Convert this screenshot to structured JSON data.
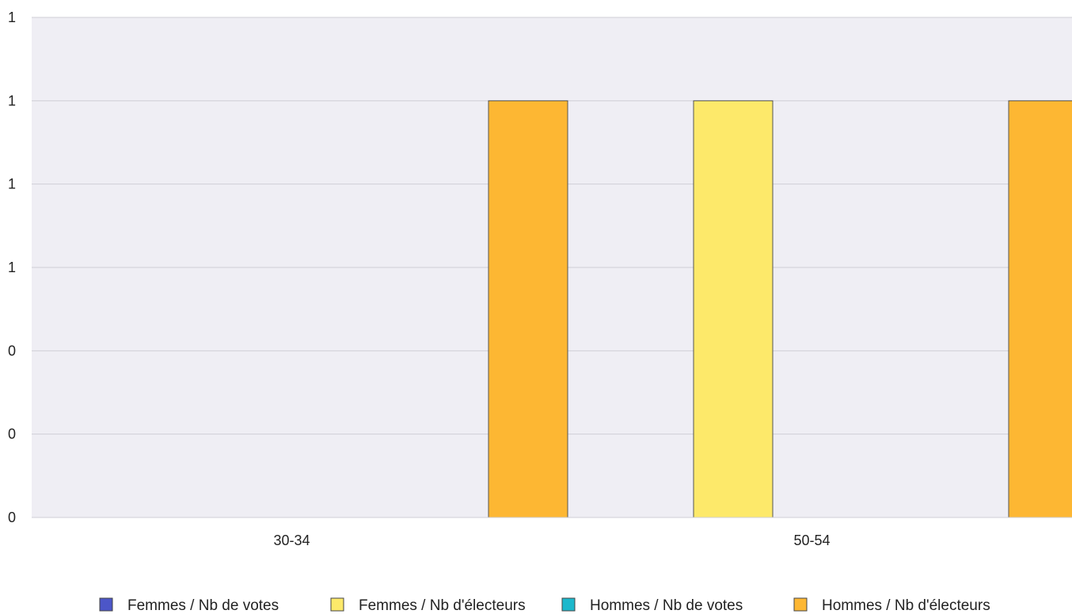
{
  "chart_data": {
    "type": "bar",
    "categories": [
      "30-34",
      "50-54"
    ],
    "series": [
      {
        "name": "Femmes / Nb de votes",
        "color": "#4c56c8",
        "values": [
          0,
          0
        ]
      },
      {
        "name": "Femmes / Nb d'électeurs",
        "color": "#fde96a",
        "values": [
          0,
          1
        ]
      },
      {
        "name": "Hommes / Nb de votes",
        "color": "#1cb8cc",
        "values": [
          0,
          0
        ]
      },
      {
        "name": "Hommes / Nb d'électeurs",
        "color": "#fdb733",
        "values": [
          1,
          1
        ]
      }
    ],
    "y_tick_labels": [
      "0",
      "0",
      "0",
      "1",
      "1",
      "1",
      "1"
    ],
    "ylim": [
      0,
      1.2
    ],
    "y_tick_step": 0.2,
    "grid": true,
    "plot_background": "#efeef4",
    "legend_position": "bottom",
    "title": "",
    "xlabel": "",
    "ylabel": ""
  }
}
